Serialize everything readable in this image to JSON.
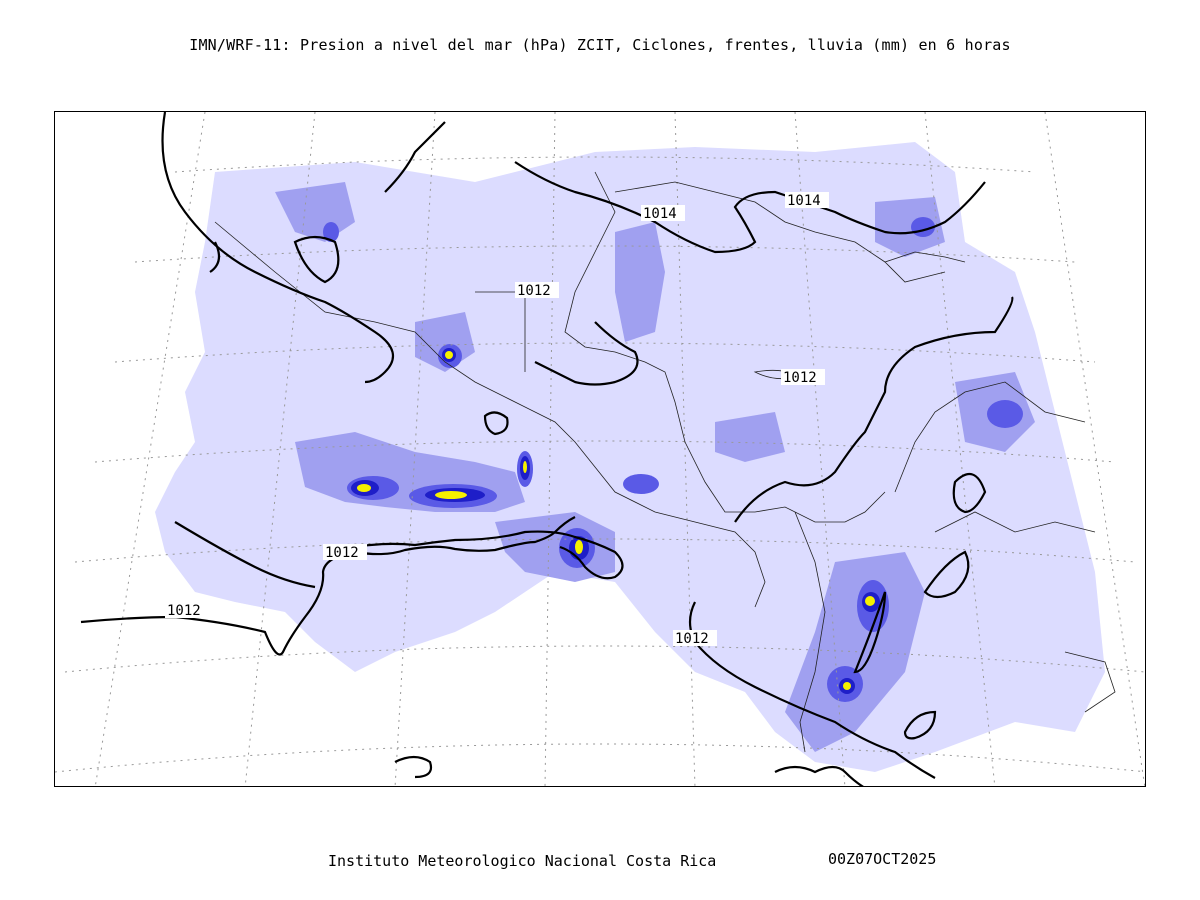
{
  "title": "IMN/WRF-11: Presion a nivel del mar (hPa) ZCIT, Ciclones, frentes, lluvia (mm) en 6 horas",
  "footer": {
    "institution": "Instituto Meteorologico Nacional Costa Rica",
    "timestamp": "00Z07OCT2025"
  },
  "map": {
    "isobar_labels": [
      "1014",
      "1014",
      "1012",
      "1012",
      "1012",
      "1012",
      "1012"
    ],
    "colors": {
      "rain_light": "#dcdcff",
      "rain_medium": "#a0a0f0",
      "rain_heavy": "#5a5ae6",
      "rain_very_heavy": "#1e1ec8",
      "rain_extreme": "#f5f000",
      "isobar": "#000000",
      "grid": "#999999"
    }
  }
}
